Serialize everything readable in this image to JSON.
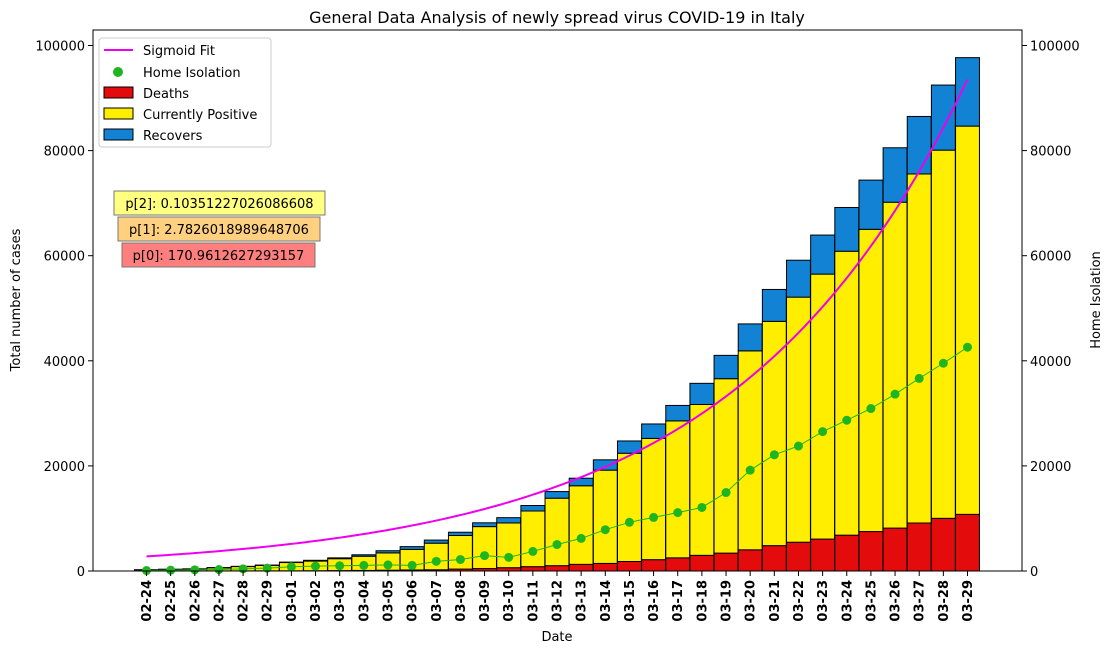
{
  "chart_data": {
    "type": "bar",
    "title": "General Data Analysis of newly spread virus COVID-19 in Italy",
    "xlabel": "Date",
    "ylabel": "Total number of cases",
    "y2label": "Home Isolation",
    "ylim": [
      0,
      100000
    ],
    "y2lim": [
      0,
      100000
    ],
    "yticks": [
      0,
      20000,
      40000,
      60000,
      80000,
      100000
    ],
    "legend_position": "top-left",
    "grid": false,
    "categories": [
      "02-24",
      "02-25",
      "02-26",
      "02-27",
      "02-28",
      "02-29",
      "03-01",
      "03-02",
      "03-03",
      "03-04",
      "03-05",
      "03-06",
      "03-07",
      "03-08",
      "03-09",
      "03-10",
      "03-11",
      "03-12",
      "03-13",
      "03-14",
      "03-15",
      "03-16",
      "03-17",
      "03-18",
      "03-19",
      "03-20",
      "03-21",
      "03-22",
      "03-23",
      "03-24",
      "03-25",
      "03-26",
      "03-27",
      "03-28",
      "03-29"
    ],
    "stacked_series": [
      {
        "name": "Deaths",
        "color": "#e30b0b",
        "values": [
          7,
          10,
          12,
          17,
          21,
          29,
          34,
          52,
          79,
          107,
          148,
          197,
          233,
          366,
          463,
          631,
          827,
          1016,
          1266,
          1441,
          1809,
          2158,
          2503,
          2978,
          3405,
          4032,
          4825,
          5476,
          6077,
          6820,
          7503,
          8165,
          9134,
          10023,
          10779
        ]
      },
      {
        "name": "Currently Positive",
        "color": "#ffee00",
        "values": [
          221,
          311,
          385,
          588,
          821,
          1049,
          1577,
          1835,
          2263,
          2706,
          3296,
          3916,
          5061,
          6387,
          7985,
          8514,
          10590,
          12839,
          14955,
          17750,
          20603,
          23073,
          26062,
          28710,
          33190,
          37860,
          42681,
          46638,
          50418,
          54030,
          57521,
          62013,
          66414,
          70065,
          73880
        ]
      },
      {
        "name": "Recovers",
        "color": "#1283d4",
        "values": [
          1,
          1,
          3,
          45,
          46,
          50,
          83,
          149,
          160,
          276,
          414,
          523,
          589,
          622,
          724,
          1004,
          1045,
          1258,
          1439,
          1966,
          2335,
          2749,
          2941,
          4025,
          4440,
          5129,
          6072,
          7024,
          7432,
          8326,
          9362,
          10361,
          10950,
          12384,
          13030
        ]
      }
    ],
    "home_isolation": {
      "name": "Home Isolation",
      "color": "#1fb51f",
      "values": [
        94,
        162,
        221,
        284,
        412,
        543,
        798,
        927,
        1000,
        1065,
        1155,
        1060,
        1843,
        2180,
        2936,
        2599,
        3724,
        5036,
        6201,
        7860,
        9268,
        10197,
        11108,
        12090,
        14935,
        19185,
        22116,
        23783,
        26522,
        28697,
        30920,
        33648,
        36653,
        39533,
        42588
      ]
    },
    "sigmoid_fit": {
      "name": "Sigmoid Fit",
      "color": "#ee00ee",
      "params": {
        "p0": 170.9612627293157,
        "p1": 2.7826018989648706,
        "p2": 0.10351227026086608
      }
    },
    "param_boxes": [
      {
        "label": "p[2]: 0.10351227026086608",
        "color": "#ffff80"
      },
      {
        "label": "p[1]: 2.7826018989648706",
        "color": "#ffd080"
      },
      {
        "label": "p[0]: 170.9612627293157",
        "color": "#ff7f7f"
      }
    ]
  }
}
